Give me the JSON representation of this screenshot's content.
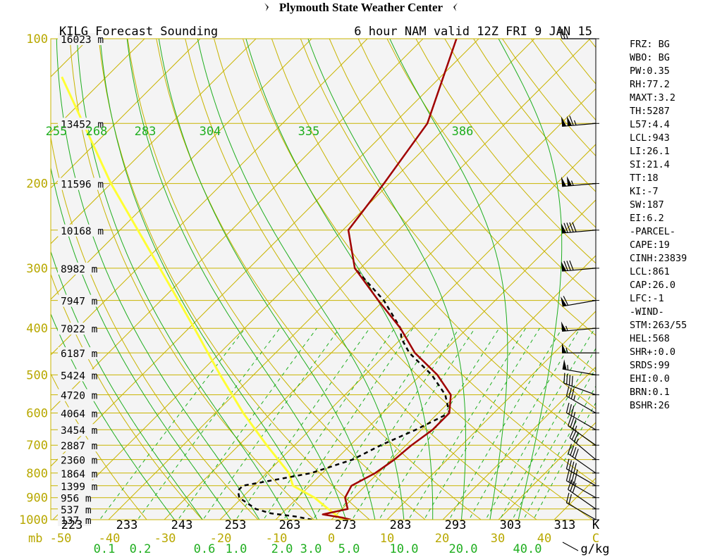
{
  "header": {
    "banner": "Plymouth State Weather Center",
    "left_title": "KILG Forecast Sounding",
    "right_title": "6 hour NAM valid 12Z FRI 9 JAN 15"
  },
  "colors": {
    "background": "#f4f4f4",
    "isobar": "#c8b400",
    "isotherm": "#c8b400",
    "dry_adiabat": "#c8b400",
    "moist_adiabat": "#1fae1f",
    "mixing_ratio": "#1fae1f",
    "temperature": "#a00000",
    "dewpoint": "#000000",
    "parcel": "#ffff33",
    "pressure_label": "#b8a800",
    "theta_label": "#1fae1f",
    "wind_barb": "#000000"
  },
  "chart_data": {
    "type": "line",
    "plot": "skew-T log-P",
    "pressure_levels": [
      100,
      200,
      300,
      400,
      500,
      600,
      700,
      800,
      900,
      1000
    ],
    "pressure_unit": "mb",
    "temperature_ticks": [
      "-50",
      "-40",
      "-30",
      "-20",
      "-10",
      "0",
      "10",
      "20",
      "30",
      "40",
      "C"
    ],
    "kelvin_ticks": [
      "223",
      "233",
      "243",
      "253",
      "263",
      "273",
      "283",
      "293",
      "303",
      "313",
      "K"
    ],
    "mixing_ratio_ticks": [
      "0.1",
      "0.2",
      "0.6",
      "1.0",
      "2.0",
      "3.0",
      "5.0",
      "10.0",
      "20.0",
      "40.0",
      "g/kg"
    ],
    "moist_adiabat_labels": [
      "255",
      "268",
      "283",
      "304",
      "335",
      "386"
    ],
    "heights": [
      {
        "p": 100,
        "label": "16023 m"
      },
      {
        "p": 150,
        "label": "13452 m"
      },
      {
        "p": 200,
        "label": "11596 m"
      },
      {
        "p": 250,
        "label": "10168 m"
      },
      {
        "p": 300,
        "label": "8982 m"
      },
      {
        "p": 350,
        "label": "7947 m"
      },
      {
        "p": 400,
        "label": "7022 m"
      },
      {
        "p": 450,
        "label": "6187 m"
      },
      {
        "p": 500,
        "label": "5424 m"
      },
      {
        "p": 550,
        "label": "4720 m"
      },
      {
        "p": 600,
        "label": "4064 m"
      },
      {
        "p": 650,
        "label": "3454 m"
      },
      {
        "p": 700,
        "label": "2887 m"
      },
      {
        "p": 750,
        "label": "2360 m"
      },
      {
        "p": 800,
        "label": "1864 m"
      },
      {
        "p": 850,
        "label": "1399 m"
      },
      {
        "p": 900,
        "label": "956 m"
      },
      {
        "p": 950,
        "label": "537 m"
      },
      {
        "p": 1000,
        "label": "137 m"
      }
    ],
    "series": [
      {
        "key": "temperature",
        "points": [
          [
            1000,
            3.5
          ],
          [
            990,
            1.5
          ],
          [
            975,
            -2.5
          ],
          [
            950,
            1
          ],
          [
            900,
            -1.5
          ],
          [
            850,
            -2.5
          ],
          [
            800,
            -0.5
          ],
          [
            750,
            0.5
          ],
          [
            700,
            1
          ],
          [
            650,
            2
          ],
          [
            600,
            2
          ],
          [
            550,
            -1
          ],
          [
            500,
            -7
          ],
          [
            450,
            -15
          ],
          [
            400,
            -22
          ],
          [
            350,
            -31
          ],
          [
            300,
            -41
          ],
          [
            250,
            -49
          ],
          [
            200,
            -51
          ],
          [
            150,
            -54
          ],
          [
            100,
            -64
          ]
        ]
      },
      {
        "key": "dewpoint",
        "points": [
          [
            1000,
            -3.5
          ],
          [
            985,
            -7
          ],
          [
            970,
            -12
          ],
          [
            950,
            -15.5
          ],
          [
            900,
            -20.5
          ],
          [
            870,
            -22
          ],
          [
            850,
            -22
          ],
          [
            820,
            -16
          ],
          [
            800,
            -12
          ],
          [
            750,
            -7
          ],
          [
            700,
            -4.5
          ],
          [
            650,
            -1
          ],
          [
            600,
            2
          ],
          [
            550,
            -2
          ],
          [
            500,
            -8
          ],
          [
            450,
            -16
          ],
          [
            420,
            -20
          ],
          [
            400,
            -22
          ],
          [
            350,
            -30
          ],
          [
            300,
            -41
          ]
        ]
      },
      {
        "key": "parcel",
        "points": [
          [
            1000,
            2
          ],
          [
            950,
            -2.5
          ],
          [
            900,
            -7
          ],
          [
            850,
            -13
          ],
          [
            800,
            -16
          ],
          [
            700,
            -25
          ],
          [
            600,
            -35
          ],
          [
            500,
            -46
          ],
          [
            400,
            -59
          ],
          [
            300,
            -76
          ],
          [
            200,
            -100
          ],
          [
            120,
            -128
          ]
        ]
      }
    ],
    "wind_barbs": [
      {
        "p": 100,
        "dir": 270,
        "speed": 25
      },
      {
        "p": 150,
        "dir": 265,
        "speed": 115
      },
      {
        "p": 200,
        "dir": 265,
        "speed": 105
      },
      {
        "p": 250,
        "dir": 265,
        "speed": 90
      },
      {
        "p": 300,
        "dir": 265,
        "speed": 80
      },
      {
        "p": 350,
        "dir": 260,
        "speed": 60
      },
      {
        "p": 400,
        "dir": 265,
        "speed": 55
      },
      {
        "p": 450,
        "dir": 270,
        "speed": 55
      },
      {
        "p": 500,
        "dir": 280,
        "speed": 55
      },
      {
        "p": 550,
        "dir": 290,
        "speed": 40
      },
      {
        "p": 600,
        "dir": 300,
        "speed": 35
      },
      {
        "p": 650,
        "dir": 300,
        "speed": 35
      },
      {
        "p": 700,
        "dir": 305,
        "speed": 35
      },
      {
        "p": 750,
        "dir": 310,
        "speed": 35
      },
      {
        "p": 800,
        "dir": 305,
        "speed": 40
      },
      {
        "p": 850,
        "dir": 300,
        "speed": 45
      },
      {
        "p": 900,
        "dir": 300,
        "speed": 40
      },
      {
        "p": 950,
        "dir": 305,
        "speed": 30
      },
      {
        "p": 1000,
        "dir": 300,
        "speed": 20
      }
    ]
  },
  "indices": [
    "FRZ: BG",
    "WBO: BG",
    "PW:0.35",
    "RH:77.2",
    "MAXT:3.2",
    "TH:5287",
    "L57:4.4",
    "LCL:943",
    "LI:26.1",
    "SI:21.4",
    "TT:18",
    "KI:-7",
    "SW:187",
    "EI:6.2",
    "-PARCEL-",
    "CAPE:19",
    "CINH:23839",
    "LCL:861",
    "CAP:26.0",
    "LFC:-1",
    "-WIND-",
    "STM:263/55",
    "HEL:568",
    "SHR+:0.0",
    "SRDS:99",
    "EHI:0.0",
    "BRN:0.1",
    "BSHR:26"
  ]
}
